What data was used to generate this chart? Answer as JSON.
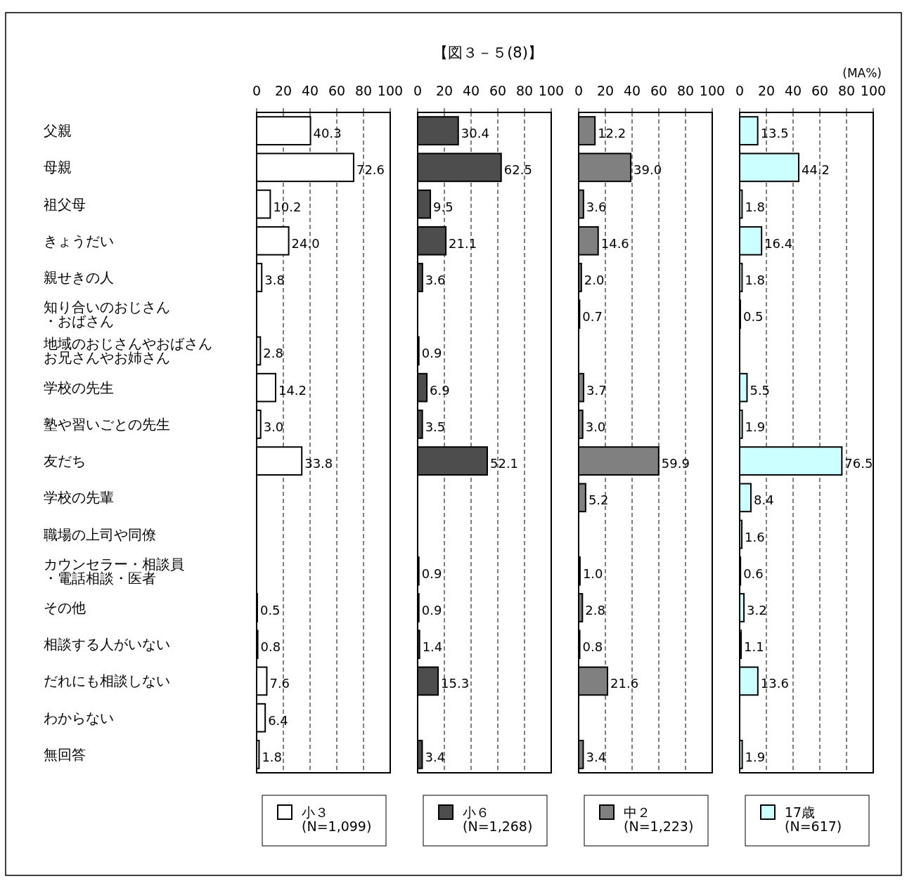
{
  "chart_data": [
    {
      "type": "bar",
      "orientation": "horizontal",
      "categories": [
        "父親",
        "母親",
        "祖父母",
        "きょうだい",
        "親せきの人",
        "知り合いのおじさん・おばさん",
        "地域のおじさんやおばさんお兄さんやお姉さん",
        "学校の先生",
        "塾や習いごとの先生",
        "友だち",
        "学校の先輩",
        "職場の上司や同僚",
        "カウンセラー・相談員・電話相談・医者",
        "その他",
        "相談する人がいない",
        "だれにも相談しない",
        "わからない",
        "無回答"
      ],
      "xlim": [
        0,
        100
      ],
      "xticks": [
        0,
        20,
        40,
        60,
        80,
        100
      ],
      "grid": "x",
      "legend": "bottom",
      "series": [
        {
          "name": "小３\n(N=1,099)",
          "color": "#ffffff",
          "values": [
            40.3,
            72.6,
            10.2,
            24.0,
            3.8,
            null,
            2.8,
            14.2,
            3.0,
            33.8,
            null,
            null,
            null,
            0.5,
            0.8,
            7.6,
            6.4,
            1.8
          ],
          "value_labels": [
            "40.3",
            "72.6",
            "10.2",
            "24.0",
            "3.8",
            null,
            "2.8",
            "14.2",
            "3.0",
            "33.8",
            null,
            null,
            null,
            "0.5",
            "0.8",
            "7.6",
            "6.4",
            "1.8"
          ]
        }
      ]
    },
    {
      "type": "bar",
      "orientation": "horizontal",
      "title": "【図３－５(8)】",
      "categories": [
        null,
        null,
        null,
        null,
        null,
        null,
        null,
        null,
        null,
        null,
        null,
        null,
        null,
        null,
        null,
        null,
        null,
        null
      ],
      "xlim": [
        0,
        100
      ],
      "xticks": [
        0,
        20,
        40,
        60,
        80,
        100
      ],
      "grid": "x",
      "legend": "bottom",
      "tick_labels": "x",
      "series": [
        {
          "name": "小６\n(N=1,268)",
          "color": "#4d4d4d",
          "values": [
            30.4,
            62.5,
            9.5,
            21.1,
            3.6,
            null,
            0.9,
            6.9,
            3.5,
            52.1,
            null,
            null,
            0.9,
            0.9,
            1.4,
            15.3,
            null,
            3.4
          ],
          "value_labels": [
            "30.4",
            "62.5",
            "9.5",
            "21.1",
            "3.6",
            null,
            "0.9",
            "6.9",
            "3.5",
            "52.1",
            null,
            null,
            "0.9",
            "0.9",
            "1.4",
            "15.3",
            null,
            "3.4"
          ]
        }
      ]
    },
    {
      "type": "bar",
      "orientation": "horizontal",
      "categories": [
        null,
        null,
        null,
        null,
        null,
        null,
        null,
        null,
        null,
        null,
        null,
        null,
        null,
        null,
        null,
        null,
        null,
        null
      ],
      "xlim": [
        0,
        100
      ],
      "xticks": [
        0,
        20,
        40,
        60,
        80,
        100
      ],
      "grid": "x",
      "legend": "bottom",
      "tick_labels": "x",
      "series": [
        {
          "name": "中２\n(N=1,223)",
          "color": "#808080",
          "values": [
            12.2,
            39.0,
            3.6,
            14.6,
            2.0,
            0.7,
            null,
            3.7,
            3.0,
            59.9,
            5.2,
            null,
            1.0,
            2.8,
            0.8,
            21.6,
            null,
            3.4
          ],
          "value_labels": [
            "12.2",
            "39.0",
            "3.6",
            "14.6",
            "2.0",
            "0.7",
            null,
            "3.7",
            "3.0",
            "59.9",
            "5.2",
            null,
            "1.0",
            "2.8",
            "0.8",
            "21.6",
            null,
            "3.4"
          ]
        }
      ]
    },
    {
      "type": "bar",
      "orientation": "horizontal",
      "categories": [
        null,
        null,
        null,
        null,
        null,
        null,
        null,
        null,
        null,
        null,
        null,
        null,
        null,
        null,
        null,
        null,
        null,
        null
      ],
      "xlim": [
        0,
        100
      ],
      "xticks": [
        0,
        20,
        40,
        60,
        80,
        100
      ],
      "grid": "x",
      "legend": "bottom",
      "tick_labels": "x",
      "annotations": [
        "(MA%)"
      ],
      "series": [
        {
          "name": "17歳\n(N=617)",
          "color": "#ccffff",
          "values": [
            13.5,
            44.2,
            1.8,
            16.4,
            1.8,
            0.5,
            null,
            5.5,
            1.9,
            76.5,
            8.4,
            1.6,
            0.6,
            3.2,
            1.1,
            13.6,
            null,
            1.9
          ],
          "value_labels": [
            "13.5",
            "44.2",
            "1.8",
            "16.4",
            "1.8",
            "0.5",
            null,
            "5.5",
            "1.9",
            "76.5",
            "8.4",
            "1.6",
            "0.6",
            "3.2",
            "1.1",
            "13.6",
            null,
            "1.9"
          ]
        }
      ]
    }
  ]
}
